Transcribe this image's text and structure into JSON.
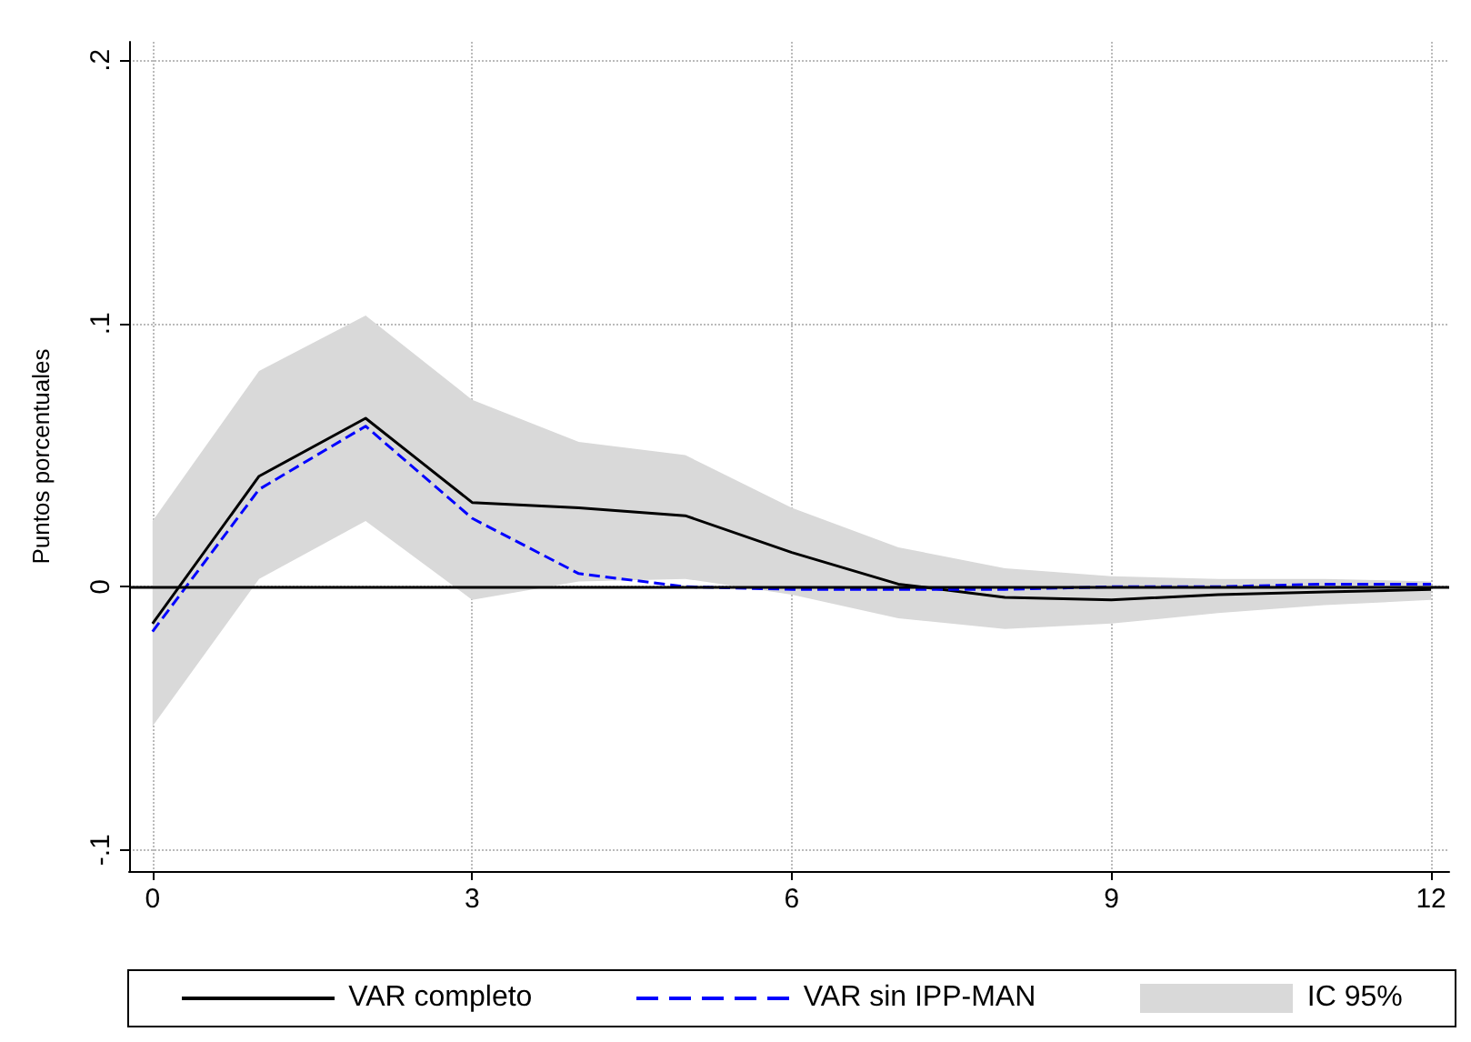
{
  "chart_data": {
    "type": "line",
    "ylabel": "Puntos porcentuales",
    "x": [
      0,
      1,
      2,
      3,
      4,
      5,
      6,
      7,
      8,
      9,
      10,
      11,
      12
    ],
    "series": [
      {
        "name": "VAR completo",
        "color": "#000000",
        "line_style": "solid",
        "values": [
          -0.014,
          0.042,
          0.064,
          0.032,
          0.03,
          0.027,
          0.013,
          0.001,
          -0.004,
          -0.005,
          -0.003,
          -0.002,
          -0.001
        ],
        "lower": [
          -0.053,
          0.003,
          0.025,
          -0.005,
          0.002,
          0.003,
          -0.003,
          -0.012,
          -0.016,
          -0.014,
          -0.01,
          -0.007,
          -0.005
        ],
        "upper": [
          0.025,
          0.082,
          0.103,
          0.071,
          0.055,
          0.05,
          0.03,
          0.015,
          0.007,
          0.004,
          0.003,
          0.003,
          0.002
        ]
      },
      {
        "name": "VAR sin IPP-MAN",
        "color": "#0000ff",
        "line_style": "dashed",
        "values": [
          -0.017,
          0.037,
          0.061,
          0.026,
          0.005,
          0.0,
          -0.001,
          -0.001,
          -0.001,
          0.0,
          0.0,
          0.001,
          0.001
        ]
      }
    ],
    "annotations": [
      "IC 95%"
    ],
    "xlim": [
      -0.22,
      12.17
    ],
    "xticks": [
      0,
      3,
      6,
      9,
      12
    ],
    "ylim": [
      -0.108,
      0.207
    ],
    "yticks": [
      {
        "value": -0.1,
        "label": "-.1"
      },
      {
        "value": 0,
        "label": "0"
      },
      {
        "value": 0.1,
        "label": ".1"
      },
      {
        "value": 0.2,
        "label": ".2"
      }
    ],
    "grid": true,
    "legend": "bottom",
    "marker": "none",
    "ref_lines": [
      {
        "axis": "y",
        "value": 0,
        "color": "#000000",
        "line_style": "solid"
      }
    ]
  }
}
